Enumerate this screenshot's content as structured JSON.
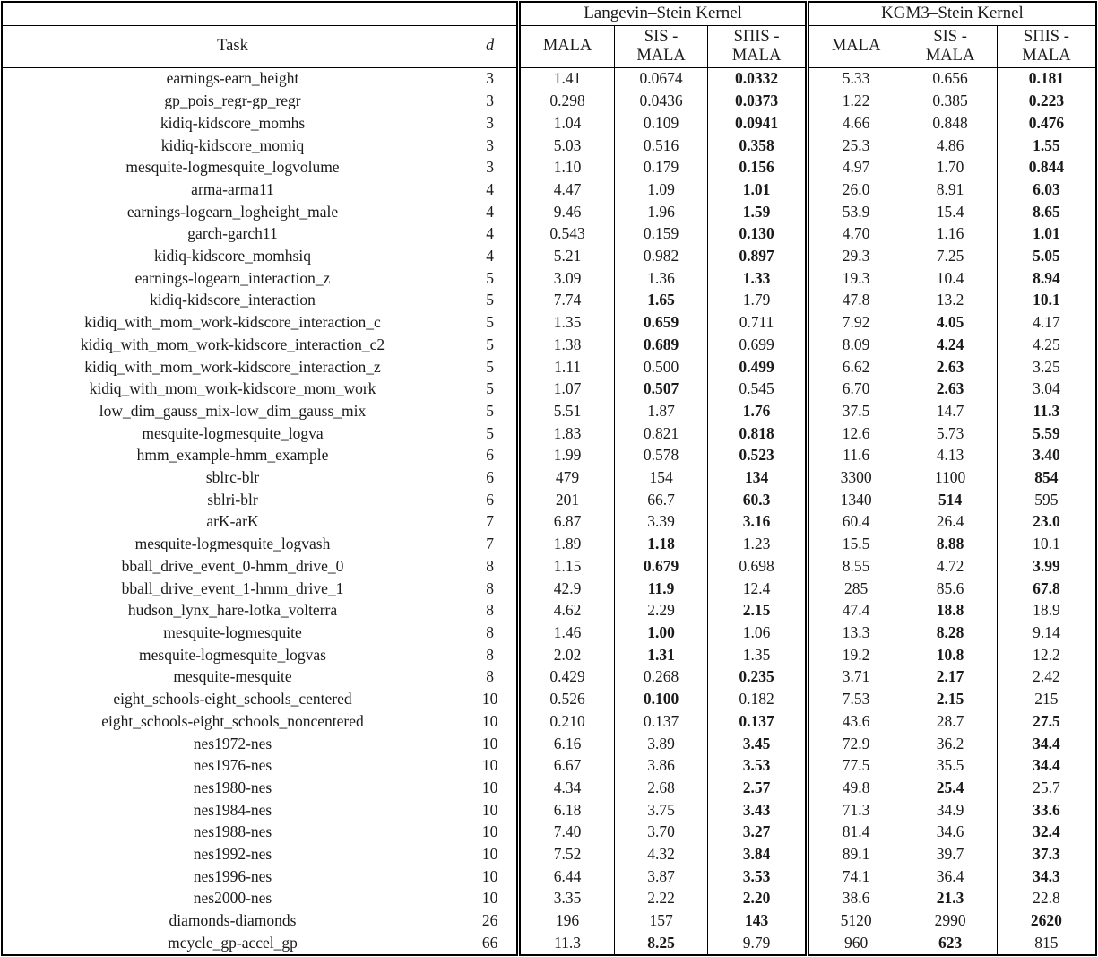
{
  "table": {
    "groups": [
      "Langevin–Stein Kernel",
      "KGM3–Stein Kernel"
    ],
    "headers": {
      "task": "Task",
      "d": "d"
    },
    "sub_headers": [
      {
        "line1": "MALA",
        "line2": ""
      },
      {
        "line1": "SIS -",
        "line2": "MALA"
      },
      {
        "line1": "SΠIS -",
        "line2": "MALA"
      },
      {
        "line1": "MALA",
        "line2": ""
      },
      {
        "line1": "SIS -",
        "line2": "MALA"
      },
      {
        "line1": "SΠIS -",
        "line2": "MALA"
      }
    ],
    "rows": [
      {
        "task": "earnings-earn_height",
        "d": "3",
        "values": [
          "1.41",
          "0.0674",
          "0.0332",
          "5.33",
          "0.656",
          "0.181"
        ],
        "bold": [
          2,
          5
        ]
      },
      {
        "task": "gp_pois_regr-gp_regr",
        "d": "3",
        "values": [
          "0.298",
          "0.0436",
          "0.0373",
          "1.22",
          "0.385",
          "0.223"
        ],
        "bold": [
          2,
          5
        ]
      },
      {
        "task": "kidiq-kidscore_momhs",
        "d": "3",
        "values": [
          "1.04",
          "0.109",
          "0.0941",
          "4.66",
          "0.848",
          "0.476"
        ],
        "bold": [
          2,
          5
        ]
      },
      {
        "task": "kidiq-kidscore_momiq",
        "d": "3",
        "values": [
          "5.03",
          "0.516",
          "0.358",
          "25.3",
          "4.86",
          "1.55"
        ],
        "bold": [
          2,
          5
        ]
      },
      {
        "task": "mesquite-logmesquite_logvolume",
        "d": "3",
        "values": [
          "1.10",
          "0.179",
          "0.156",
          "4.97",
          "1.70",
          "0.844"
        ],
        "bold": [
          2,
          5
        ]
      },
      {
        "task": "arma-arma11",
        "d": "4",
        "values": [
          "4.47",
          "1.09",
          "1.01",
          "26.0",
          "8.91",
          "6.03"
        ],
        "bold": [
          2,
          5
        ]
      },
      {
        "task": "earnings-logearn_logheight_male",
        "d": "4",
        "values": [
          "9.46",
          "1.96",
          "1.59",
          "53.9",
          "15.4",
          "8.65"
        ],
        "bold": [
          2,
          5
        ]
      },
      {
        "task": "garch-garch11",
        "d": "4",
        "values": [
          "0.543",
          "0.159",
          "0.130",
          "4.70",
          "1.16",
          "1.01"
        ],
        "bold": [
          2,
          5
        ]
      },
      {
        "task": "kidiq-kidscore_momhsiq",
        "d": "4",
        "values": [
          "5.21",
          "0.982",
          "0.897",
          "29.3",
          "7.25",
          "5.05"
        ],
        "bold": [
          2,
          5
        ]
      },
      {
        "task": "earnings-logearn_interaction_z",
        "d": "5",
        "values": [
          "3.09",
          "1.36",
          "1.33",
          "19.3",
          "10.4",
          "8.94"
        ],
        "bold": [
          2,
          5
        ]
      },
      {
        "task": "kidiq-kidscore_interaction",
        "d": "5",
        "values": [
          "7.74",
          "1.65",
          "1.79",
          "47.8",
          "13.2",
          "10.1"
        ],
        "bold": [
          1,
          5
        ]
      },
      {
        "task": "kidiq_with_mom_work-kidscore_interaction_c",
        "d": "5",
        "values": [
          "1.35",
          "0.659",
          "0.711",
          "7.92",
          "4.05",
          "4.17"
        ],
        "bold": [
          1,
          4
        ]
      },
      {
        "task": "kidiq_with_mom_work-kidscore_interaction_c2",
        "d": "5",
        "values": [
          "1.38",
          "0.689",
          "0.699",
          "8.09",
          "4.24",
          "4.25"
        ],
        "bold": [
          1,
          4
        ]
      },
      {
        "task": "kidiq_with_mom_work-kidscore_interaction_z",
        "d": "5",
        "values": [
          "1.11",
          "0.500",
          "0.499",
          "6.62",
          "2.63",
          "3.25"
        ],
        "bold": [
          2,
          4
        ]
      },
      {
        "task": "kidiq_with_mom_work-kidscore_mom_work",
        "d": "5",
        "values": [
          "1.07",
          "0.507",
          "0.545",
          "6.70",
          "2.63",
          "3.04"
        ],
        "bold": [
          1,
          4
        ]
      },
      {
        "task": "low_dim_gauss_mix-low_dim_gauss_mix",
        "d": "5",
        "values": [
          "5.51",
          "1.87",
          "1.76",
          "37.5",
          "14.7",
          "11.3"
        ],
        "bold": [
          2,
          5
        ]
      },
      {
        "task": "mesquite-logmesquite_logva",
        "d": "5",
        "values": [
          "1.83",
          "0.821",
          "0.818",
          "12.6",
          "5.73",
          "5.59"
        ],
        "bold": [
          2,
          5
        ]
      },
      {
        "task": "hmm_example-hmm_example",
        "d": "6",
        "values": [
          "1.99",
          "0.578",
          "0.523",
          "11.6",
          "4.13",
          "3.40"
        ],
        "bold": [
          2,
          5
        ]
      },
      {
        "task": "sblrc-blr",
        "d": "6",
        "values": [
          "479",
          "154",
          "134",
          "3300",
          "1100",
          "854"
        ],
        "bold": [
          2,
          5
        ]
      },
      {
        "task": "sblri-blr",
        "d": "6",
        "values": [
          "201",
          "66.7",
          "60.3",
          "1340",
          "514",
          "595"
        ],
        "bold": [
          2,
          4
        ]
      },
      {
        "task": "arK-arK",
        "d": "7",
        "values": [
          "6.87",
          "3.39",
          "3.16",
          "60.4",
          "26.4",
          "23.0"
        ],
        "bold": [
          2,
          5
        ]
      },
      {
        "task": "mesquite-logmesquite_logvash",
        "d": "7",
        "values": [
          "1.89",
          "1.18",
          "1.23",
          "15.5",
          "8.88",
          "10.1"
        ],
        "bold": [
          1,
          4
        ]
      },
      {
        "task": "bball_drive_event_0-hmm_drive_0",
        "d": "8",
        "values": [
          "1.15",
          "0.679",
          "0.698",
          "8.55",
          "4.72",
          "3.99"
        ],
        "bold": [
          1,
          5
        ]
      },
      {
        "task": "bball_drive_event_1-hmm_drive_1",
        "d": "8",
        "values": [
          "42.9",
          "11.9",
          "12.4",
          "285",
          "85.6",
          "67.8"
        ],
        "bold": [
          1,
          5
        ]
      },
      {
        "task": "hudson_lynx_hare-lotka_volterra",
        "d": "8",
        "values": [
          "4.62",
          "2.29",
          "2.15",
          "47.4",
          "18.8",
          "18.9"
        ],
        "bold": [
          2,
          4
        ]
      },
      {
        "task": "mesquite-logmesquite",
        "d": "8",
        "values": [
          "1.46",
          "1.00",
          "1.06",
          "13.3",
          "8.28",
          "9.14"
        ],
        "bold": [
          1,
          4
        ]
      },
      {
        "task": "mesquite-logmesquite_logvas",
        "d": "8",
        "values": [
          "2.02",
          "1.31",
          "1.35",
          "19.2",
          "10.8",
          "12.2"
        ],
        "bold": [
          1,
          4
        ]
      },
      {
        "task": "mesquite-mesquite",
        "d": "8",
        "values": [
          "0.429",
          "0.268",
          "0.235",
          "3.71",
          "2.17",
          "2.42"
        ],
        "bold": [
          2,
          4
        ]
      },
      {
        "task": "eight_schools-eight_schools_centered",
        "d": "10",
        "values": [
          "0.526",
          "0.100",
          "0.182",
          "7.53",
          "2.15",
          "215"
        ],
        "bold": [
          1,
          4
        ]
      },
      {
        "task": "eight_schools-eight_schools_noncentered",
        "d": "10",
        "values": [
          "0.210",
          "0.137",
          "0.137",
          "43.6",
          "28.7",
          "27.5"
        ],
        "bold": [
          2,
          5
        ]
      },
      {
        "task": "nes1972-nes",
        "d": "10",
        "values": [
          "6.16",
          "3.89",
          "3.45",
          "72.9",
          "36.2",
          "34.4"
        ],
        "bold": [
          2,
          5
        ]
      },
      {
        "task": "nes1976-nes",
        "d": "10",
        "values": [
          "6.67",
          "3.86",
          "3.53",
          "77.5",
          "35.5",
          "34.4"
        ],
        "bold": [
          2,
          5
        ]
      },
      {
        "task": "nes1980-nes",
        "d": "10",
        "values": [
          "4.34",
          "2.68",
          "2.57",
          "49.8",
          "25.4",
          "25.7"
        ],
        "bold": [
          2,
          4
        ]
      },
      {
        "task": "nes1984-nes",
        "d": "10",
        "values": [
          "6.18",
          "3.75",
          "3.43",
          "71.3",
          "34.9",
          "33.6"
        ],
        "bold": [
          2,
          5
        ]
      },
      {
        "task": "nes1988-nes",
        "d": "10",
        "values": [
          "7.40",
          "3.70",
          "3.27",
          "81.4",
          "34.6",
          "32.4"
        ],
        "bold": [
          2,
          5
        ]
      },
      {
        "task": "nes1992-nes",
        "d": "10",
        "values": [
          "7.52",
          "4.32",
          "3.84",
          "89.1",
          "39.7",
          "37.3"
        ],
        "bold": [
          2,
          5
        ]
      },
      {
        "task": "nes1996-nes",
        "d": "10",
        "values": [
          "6.44",
          "3.87",
          "3.53",
          "74.1",
          "36.4",
          "34.3"
        ],
        "bold": [
          2,
          5
        ]
      },
      {
        "task": "nes2000-nes",
        "d": "10",
        "values": [
          "3.35",
          "2.22",
          "2.20",
          "38.6",
          "21.3",
          "22.8"
        ],
        "bold": [
          2,
          4
        ]
      },
      {
        "task": "diamonds-diamonds",
        "d": "26",
        "values": [
          "196",
          "157",
          "143",
          "5120",
          "2990",
          "2620"
        ],
        "bold": [
          2,
          5
        ]
      },
      {
        "task": "mcycle_gp-accel_gp",
        "d": "66",
        "values": [
          "11.3",
          "8.25",
          "9.79",
          "960",
          "623",
          "815"
        ],
        "bold": [
          1,
          4
        ]
      }
    ]
  }
}
